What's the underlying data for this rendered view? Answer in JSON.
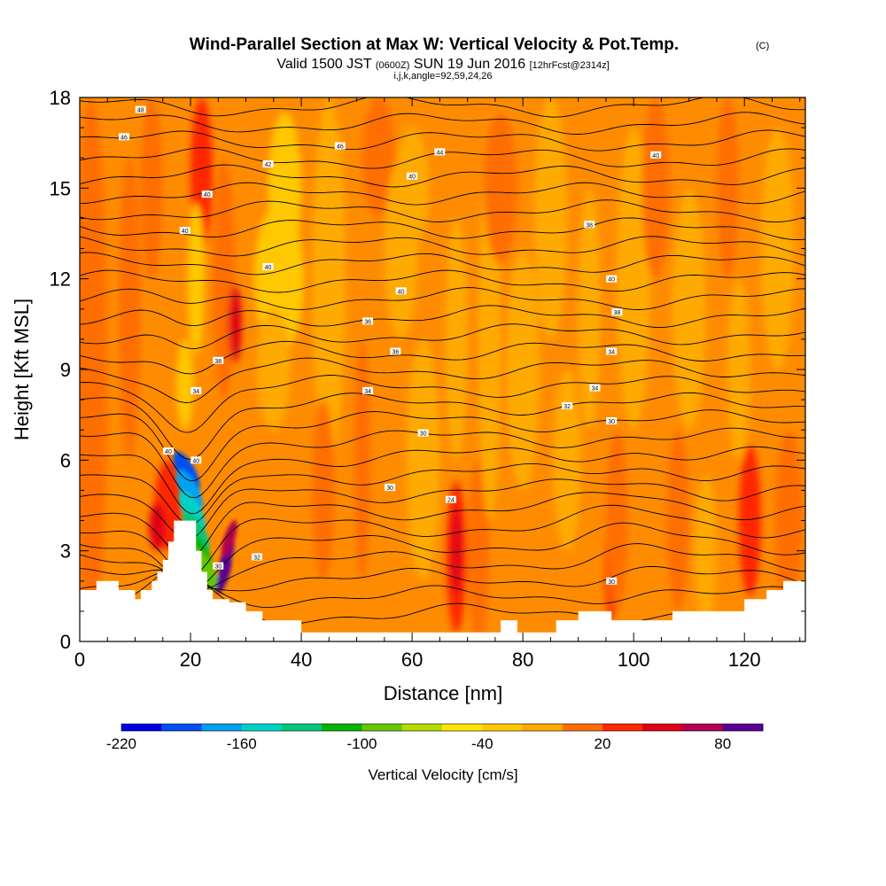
{
  "chart_data": {
    "type": "heatmap",
    "title": "Wind-Parallel Section at Max W: Vertical Velocity & Pot.Temp.",
    "copyright_mark": "(C)",
    "subtitle_prefix": "Valid 1500 JST",
    "subtitle_utc": "(0600Z)",
    "subtitle_date": "SUN 19 Jun 2016",
    "subtitle_fcst": "[12hrFcst@2314z]",
    "subtitle2": "i,j,k,angle=92,59,24,26",
    "xlabel": "Distance [nm]",
    "ylabel": "Height [Kft MSL]",
    "xlim": [
      0,
      131
    ],
    "ylim": [
      0,
      18
    ],
    "xticks": [
      0,
      20,
      40,
      60,
      80,
      100,
      120
    ],
    "xtick_labels": [
      "0",
      "20",
      "40",
      "60",
      "80",
      "100",
      "120"
    ],
    "yticks": [
      0,
      3,
      6,
      9,
      12,
      15,
      18
    ],
    "ytick_labels": [
      "0",
      "3",
      "6",
      "9",
      "12",
      "15",
      "18"
    ],
    "colorbar": {
      "label": "Vertical Velocity [cm/s]",
      "min": -220,
      "max": 100,
      "step": 20,
      "tick_values": [
        -220,
        -160,
        -100,
        -40,
        20,
        80
      ],
      "tick_labels": [
        "-220",
        "-160",
        "-100",
        "-40",
        "20",
        "80"
      ],
      "colors": [
        "#0000e6",
        "#0050f0",
        "#00a0f0",
        "#00d2c8",
        "#00c878",
        "#00b400",
        "#64c800",
        "#b4dc00",
        "#ffe600",
        "#ffc800",
        "#ffaa00",
        "#ff6e00",
        "#ff2800",
        "#e00014",
        "#b00050",
        "#5a0096"
      ]
    },
    "terrain": [
      [
        0,
        1.7
      ],
      [
        3,
        1.7
      ],
      [
        3,
        2.0
      ],
      [
        7,
        2.0
      ],
      [
        7,
        1.7
      ],
      [
        10,
        1.7
      ],
      [
        10,
        1.4
      ],
      [
        11,
        1.4
      ],
      [
        11,
        1.7
      ],
      [
        13,
        1.7
      ],
      [
        13,
        2.0
      ],
      [
        14,
        2.0
      ],
      [
        14,
        2.3
      ],
      [
        15,
        2.3
      ],
      [
        15,
        2.7
      ],
      [
        16,
        2.7
      ],
      [
        16,
        3.3
      ],
      [
        17,
        3.3
      ],
      [
        17,
        4.0
      ],
      [
        21,
        4.0
      ],
      [
        21,
        3.0
      ],
      [
        22,
        3.0
      ],
      [
        22,
        2.3
      ],
      [
        23,
        2.3
      ],
      [
        23,
        1.7
      ],
      [
        24,
        1.7
      ],
      [
        24,
        1.4
      ],
      [
        27,
        1.4
      ],
      [
        27,
        1.3
      ],
      [
        30,
        1.3
      ],
      [
        30,
        1.0
      ],
      [
        33,
        1.0
      ],
      [
        33,
        0.7
      ],
      [
        40,
        0.7
      ],
      [
        40,
        0.3
      ],
      [
        43,
        0.3
      ],
      [
        43,
        0.3
      ],
      [
        76,
        0.3
      ],
      [
        76,
        0.7
      ],
      [
        79,
        0.7
      ],
      [
        79,
        0.3
      ],
      [
        86,
        0.3
      ],
      [
        86,
        0.7
      ],
      [
        90,
        0.7
      ],
      [
        90,
        1.0
      ],
      [
        96,
        1.0
      ],
      [
        96,
        0.7
      ],
      [
        107,
        0.7
      ],
      [
        107,
        1.0
      ],
      [
        120,
        1.0
      ],
      [
        120,
        1.4
      ],
      [
        124,
        1.4
      ],
      [
        124,
        1.7
      ],
      [
        127,
        1.7
      ],
      [
        127,
        2.0
      ],
      [
        131,
        2.0
      ]
    ],
    "blobs": [
      {
        "x": 2,
        "y": 9,
        "rx": 3,
        "ry": 9,
        "w": 10
      },
      {
        "x": 9,
        "y": 11,
        "rx": 2,
        "ry": 5,
        "w": 10
      },
      {
        "x": 13,
        "y": 15,
        "rx": 2,
        "ry": 3,
        "w": 10
      },
      {
        "x": 16,
        "y": 4.5,
        "rx": 2.5,
        "ry": 1.5,
        "w": 30
      },
      {
        "x": 14,
        "y": 3.8,
        "rx": 1.5,
        "ry": 0.8,
        "w": 50
      },
      {
        "x": 22,
        "y": 15.5,
        "rx": 2,
        "ry": 2.5,
        "w": 30
      },
      {
        "x": 21,
        "y": 12,
        "rx": 1.5,
        "ry": 2.5,
        "w": -30
      },
      {
        "x": 19,
        "y": 8.5,
        "rx": 1.5,
        "ry": 1.5,
        "w": -30
      },
      {
        "x": 26,
        "y": 12,
        "rx": 2,
        "ry": 4,
        "w": 10
      },
      {
        "x": 28,
        "y": 10.5,
        "rx": 1.2,
        "ry": 1.3,
        "w": 50
      },
      {
        "x": 36,
        "y": 12,
        "rx": 4.5,
        "ry": 2.5,
        "w": -40
      },
      {
        "x": 37,
        "y": 15,
        "rx": 3,
        "ry": 2.5,
        "w": -30
      },
      {
        "x": 35,
        "y": 9,
        "rx": 3,
        "ry": 2,
        "w": -20
      },
      {
        "x": 45,
        "y": 12,
        "rx": 3,
        "ry": 6,
        "w": -20
      },
      {
        "x": 44,
        "y": 5,
        "rx": 2,
        "ry": 3,
        "w": 10
      },
      {
        "x": 51,
        "y": 6,
        "rx": 1.5,
        "ry": 4,
        "w": 10
      },
      {
        "x": 54,
        "y": 16,
        "rx": 3,
        "ry": 2,
        "w": 10
      },
      {
        "x": 58,
        "y": 13,
        "rx": 3,
        "ry": 3,
        "w": -20
      },
      {
        "x": 60,
        "y": 15,
        "rx": 3,
        "ry": 2,
        "w": -20
      },
      {
        "x": 62,
        "y": 6,
        "rx": 3,
        "ry": 4,
        "w": -20
      },
      {
        "x": 68,
        "y": 10,
        "rx": 2,
        "ry": 4,
        "w": -20
      },
      {
        "x": 68,
        "y": 2.8,
        "rx": 1.8,
        "ry": 2.5,
        "w": 30
      },
      {
        "x": 68,
        "y": 3,
        "rx": 1,
        "ry": 1.5,
        "w": 50
      },
      {
        "x": 72,
        "y": 3,
        "rx": 2,
        "ry": 3,
        "w": 10
      },
      {
        "x": 74,
        "y": 10,
        "rx": 2,
        "ry": 6,
        "w": -20
      },
      {
        "x": 76,
        "y": 15,
        "rx": 3,
        "ry": 2.5,
        "w": 10
      },
      {
        "x": 80,
        "y": 9,
        "rx": 3,
        "ry": 4,
        "w": -20
      },
      {
        "x": 85,
        "y": 14,
        "rx": 3,
        "ry": 4,
        "w": -20
      },
      {
        "x": 88,
        "y": 6,
        "rx": 2.5,
        "ry": 3,
        "w": -20
      },
      {
        "x": 92,
        "y": 11,
        "rx": 2,
        "ry": 4,
        "w": -20
      },
      {
        "x": 96,
        "y": 2.5,
        "rx": 1.2,
        "ry": 1.8,
        "w": 30
      },
      {
        "x": 97,
        "y": 4,
        "rx": 2,
        "ry": 3,
        "w": 10
      },
      {
        "x": 100,
        "y": 12,
        "rx": 3,
        "ry": 5,
        "w": -20
      },
      {
        "x": 104,
        "y": 15,
        "rx": 2.5,
        "ry": 3,
        "w": 10
      },
      {
        "x": 108,
        "y": 4,
        "rx": 2,
        "ry": 3,
        "w": 10
      },
      {
        "x": 113,
        "y": 3,
        "rx": 2,
        "ry": 2.5,
        "w": -20
      },
      {
        "x": 110,
        "y": 11,
        "rx": 3,
        "ry": 4,
        "w": -20
      },
      {
        "x": 117,
        "y": 15,
        "rx": 2,
        "ry": 3,
        "w": 10
      },
      {
        "x": 119,
        "y": 9,
        "rx": 2,
        "ry": 3,
        "w": -20
      },
      {
        "x": 121,
        "y": 4,
        "rx": 2,
        "ry": 2.5,
        "w": 30
      },
      {
        "x": 126,
        "y": 13,
        "rx": 3,
        "ry": 4,
        "w": -20
      },
      {
        "x": 128,
        "y": 4,
        "rx": 2.5,
        "ry": 3,
        "w": 10
      }
    ],
    "plume": [
      {
        "x": 19.3,
        "y": 5.6,
        "w": -200
      },
      {
        "x": 19.8,
        "y": 5.0,
        "w": -180
      },
      {
        "x": 20.3,
        "y": 4.3,
        "w": -160
      },
      {
        "x": 21.0,
        "y": 3.6,
        "w": -130
      },
      {
        "x": 21.7,
        "y": 2.9,
        "w": -110
      },
      {
        "x": 22.5,
        "y": 2.4,
        "w": -90
      }
    ],
    "updraft": [
      {
        "x": 26.5,
        "y": 2.8,
        "w": 90
      },
      {
        "x": 26.0,
        "y": 2.2,
        "w": 80
      },
      {
        "x": 27.0,
        "y": 3.4,
        "w": 70
      }
    ],
    "contour_levels": 30,
    "contour_labels": [
      {
        "x": 11,
        "y": 17.6,
        "text": "48"
      },
      {
        "x": 8,
        "y": 16.7,
        "text": "46"
      },
      {
        "x": 47,
        "y": 16.4,
        "text": "46"
      },
      {
        "x": 65,
        "y": 16.2,
        "text": "44"
      },
      {
        "x": 104,
        "y": 16.1,
        "text": "40"
      },
      {
        "x": 34,
        "y": 15.8,
        "text": "42"
      },
      {
        "x": 60,
        "y": 15.4,
        "text": "40"
      },
      {
        "x": 23,
        "y": 14.8,
        "text": "40"
      },
      {
        "x": 19,
        "y": 13.6,
        "text": "40"
      },
      {
        "x": 92,
        "y": 13.8,
        "text": "38"
      },
      {
        "x": 34,
        "y": 12.4,
        "text": "40"
      },
      {
        "x": 96,
        "y": 12.0,
        "text": "40"
      },
      {
        "x": 58,
        "y": 11.6,
        "text": "40"
      },
      {
        "x": 97,
        "y": 10.9,
        "text": "38"
      },
      {
        "x": 52,
        "y": 10.6,
        "text": "36"
      },
      {
        "x": 57,
        "y": 9.6,
        "text": "36"
      },
      {
        "x": 96,
        "y": 9.6,
        "text": "34"
      },
      {
        "x": 25,
        "y": 9.3,
        "text": "38"
      },
      {
        "x": 52,
        "y": 8.3,
        "text": "34"
      },
      {
        "x": 93,
        "y": 8.4,
        "text": "34"
      },
      {
        "x": 21,
        "y": 8.3,
        "text": "34"
      },
      {
        "x": 88,
        "y": 7.8,
        "text": "32"
      },
      {
        "x": 96,
        "y": 7.3,
        "text": "30"
      },
      {
        "x": 62,
        "y": 6.9,
        "text": "30"
      },
      {
        "x": 16,
        "y": 6.3,
        "text": "40"
      },
      {
        "x": 21,
        "y": 6.0,
        "text": "40"
      },
      {
        "x": 56,
        "y": 5.1,
        "text": "30"
      },
      {
        "x": 67,
        "y": 4.7,
        "text": "24"
      },
      {
        "x": 32,
        "y": 2.8,
        "text": "32"
      },
      {
        "x": 25,
        "y": 2.5,
        "text": "30"
      },
      {
        "x": 96,
        "y": 2.0,
        "text": "30"
      }
    ]
  }
}
